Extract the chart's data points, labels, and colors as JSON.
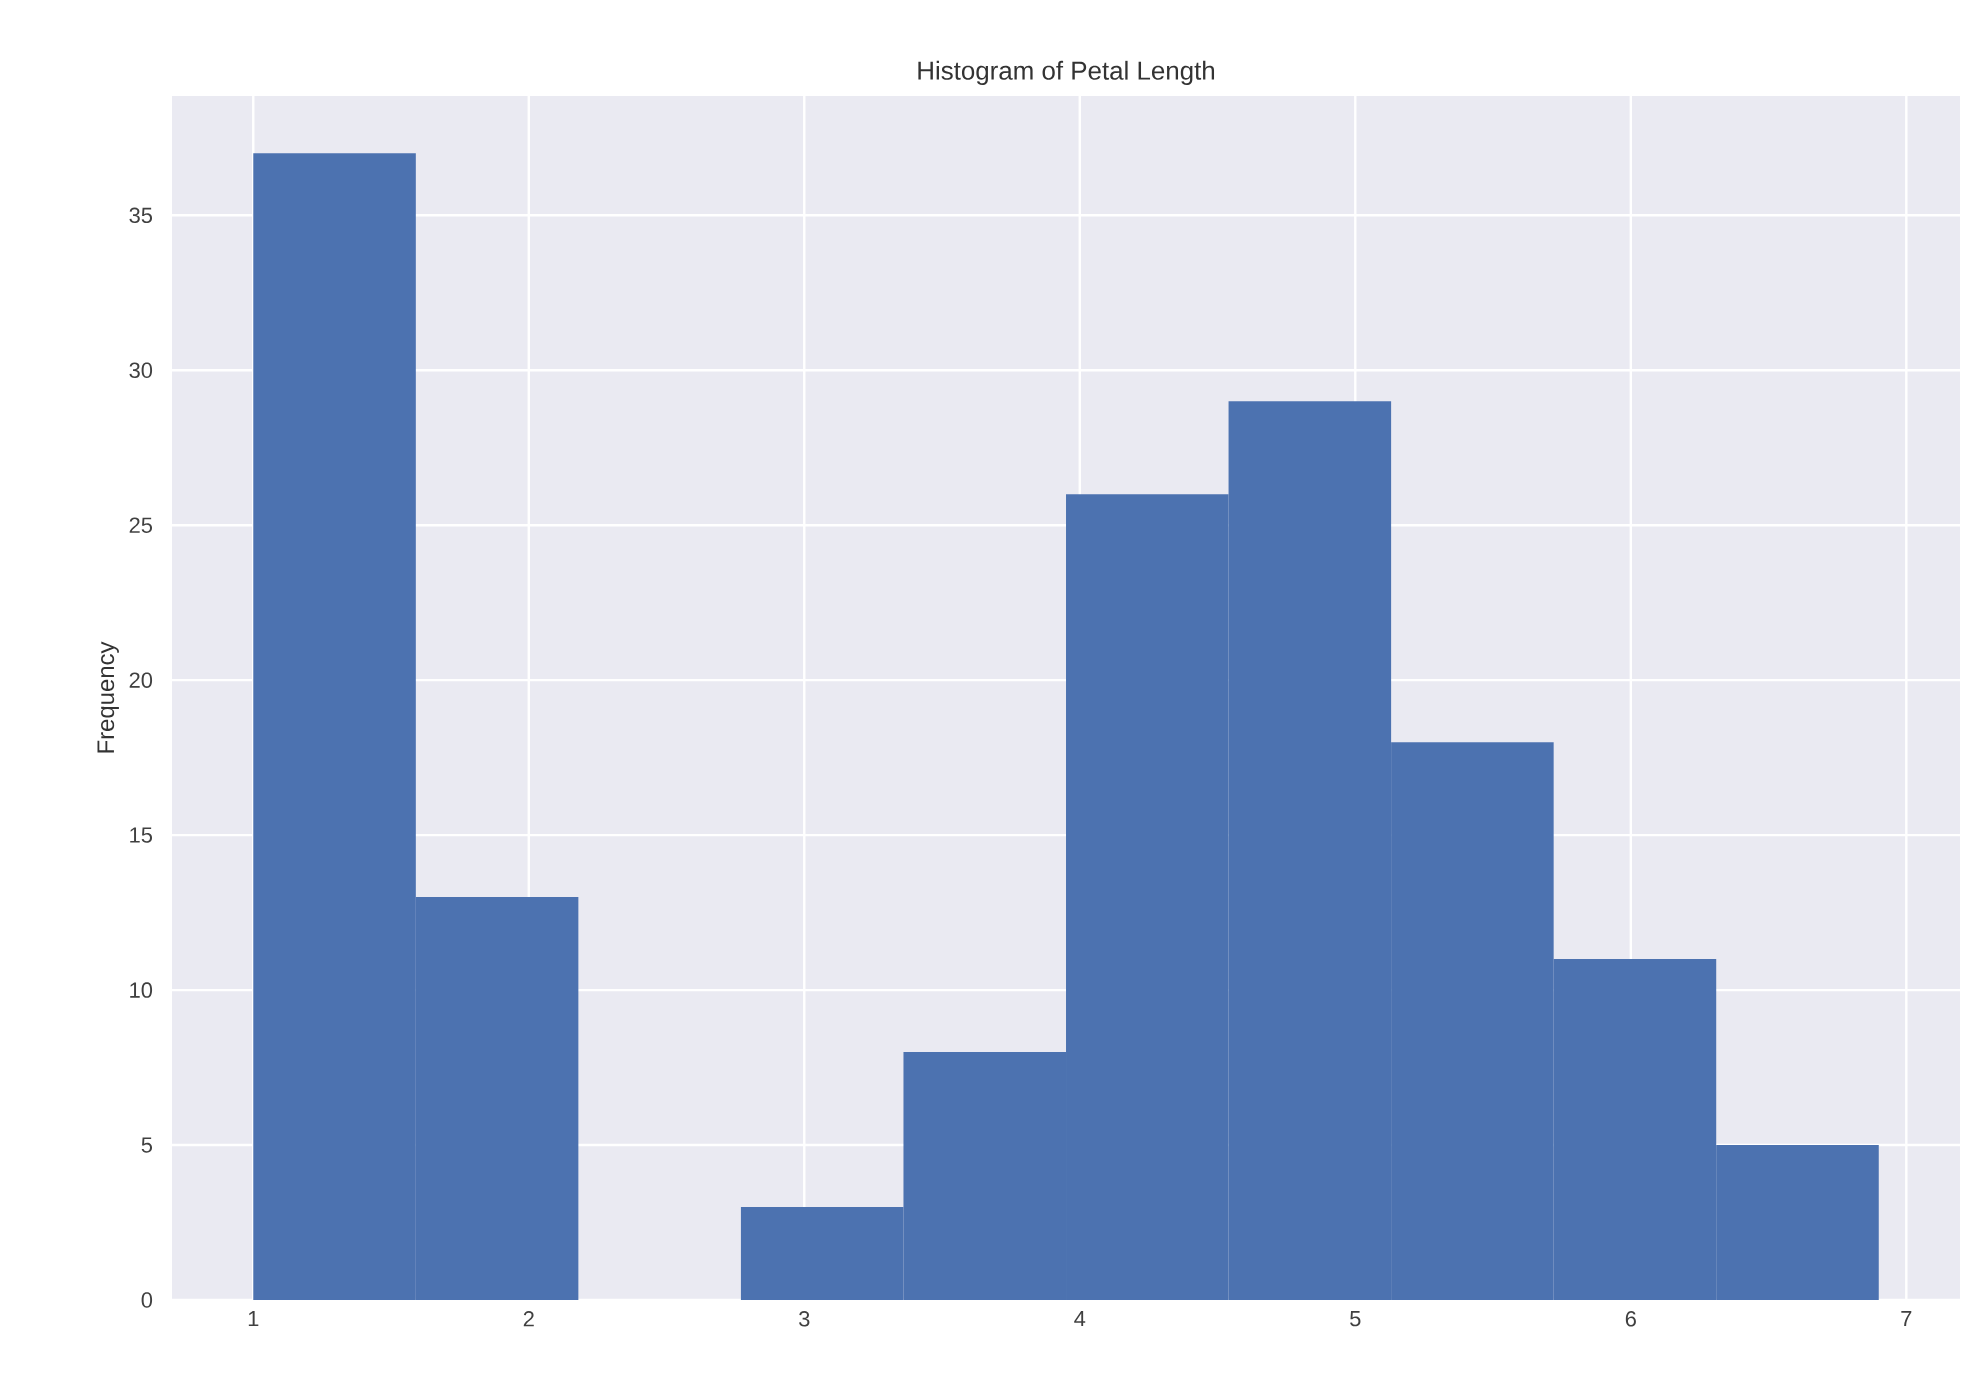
{
  "chart_data": {
    "type": "histogram",
    "title": "Histogram of Petal Length",
    "ylabel": "Frequency",
    "bins": [
      1.0,
      1.59,
      2.18,
      2.77,
      3.36,
      3.95,
      4.54,
      5.13,
      5.72,
      6.31,
      6.9
    ],
    "values": [
      37,
      13,
      0,
      3,
      8,
      26,
      29,
      18,
      11,
      5
    ],
    "color": "#4c72b0",
    "xlim": [
      0.705,
      7.195
    ],
    "ylim": [
      0,
      38.85
    ],
    "xticks": [
      1,
      2,
      3,
      4,
      5,
      6,
      7
    ],
    "yticks": [
      0,
      5,
      10,
      15,
      20,
      25,
      30,
      35
    ],
    "grid": true
  }
}
